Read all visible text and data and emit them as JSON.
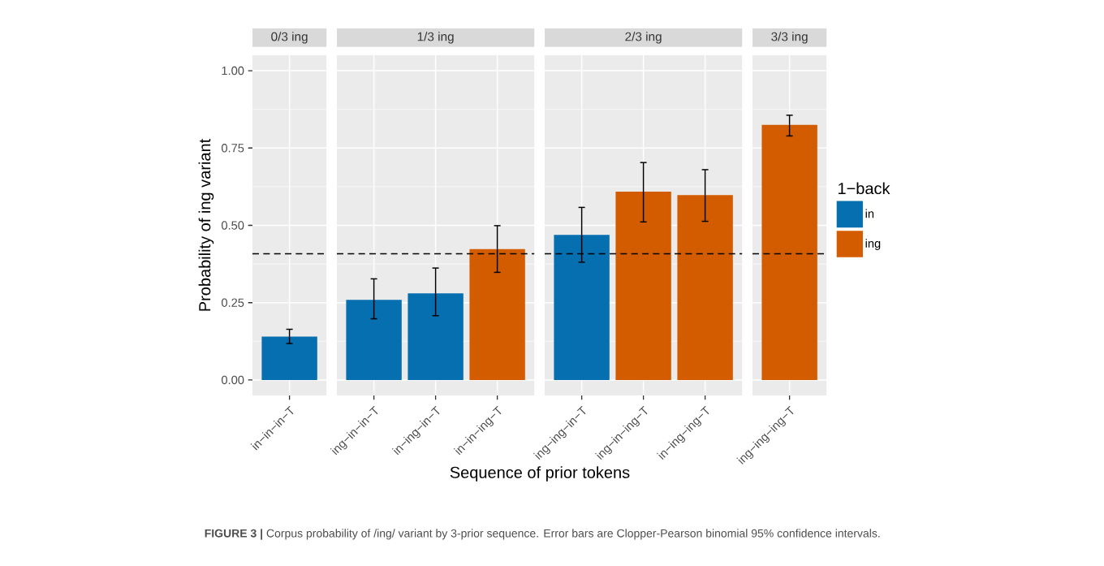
{
  "chart_data": [
    {
      "type": "bar",
      "title": "0/3 ing",
      "ylabel": "Probability of ing variant",
      "categories": [
        "in−in−in−T"
      ],
      "series": [
        {
          "color": "#066fb0",
          "values": [
            0.14
          ],
          "errors": [
            [
              0.118,
              0.164
            ]
          ]
        }
      ],
      "ylim": [
        -0.05,
        1.05
      ],
      "yticks": [
        {
          "value": 0,
          "label": "0.00"
        },
        {
          "value": 0.25,
          "label": "0.25"
        },
        {
          "value": 0.5,
          "label": "0.50"
        },
        {
          "value": 0.75,
          "label": "0.75"
        },
        {
          "value": 1,
          "label": "1.00"
        }
      ],
      "grid": true,
      "ref_lines": [
        {
          "axis": "y",
          "value": 0.408,
          "color": "#000000",
          "line_style": "dashed"
        }
      ],
      "annotations": [
        "**FIGURE 3 |** Corpus probability of /ing/ variant by 3-prior sequence. Error bars are Clopper-Pearson binomial 95% confidence intervals."
      ]
    },
    {
      "type": "bar",
      "title": "1/3 ing",
      "xlabel": "Sequence of prior tokens",
      "categories": [
        "ing−in−in−T",
        "in−ing−in−T",
        "in−in−ing−T"
      ],
      "series": [
        {
          "color": "#066fb0",
          "values": [
            0.259,
            0.28,
            null
          ],
          "errors": [
            [
              0.198,
              0.327
            ],
            [
              0.208,
              0.362
            ],
            null
          ]
        },
        {
          "color": "#d35c00",
          "values": [
            null,
            null,
            0.423
          ],
          "errors": [
            null,
            null,
            [
              0.348,
              0.499
            ]
          ]
        }
      ],
      "ylim": [
        -0.05,
        1.05
      ],
      "yticks": [
        {
          "value": 0,
          "label": null
        },
        {
          "value": 0.25,
          "label": null
        },
        {
          "value": 0.5,
          "label": null
        },
        {
          "value": 0.75,
          "label": null
        },
        {
          "value": 1,
          "label": null
        }
      ],
      "grid": true,
      "tick_labels": "x",
      "ref_lines": [
        {
          "axis": "y",
          "value": 0.408,
          "color": "#000000",
          "line_style": "dashed"
        }
      ]
    },
    {
      "type": "bar",
      "title": "2/3 ing",
      "categories": [
        "ing−ing−in−T",
        "ing−in−ing−T",
        "in−ing−ing−T"
      ],
      "series": [
        {
          "color": "#066fb0",
          "values": [
            0.469,
            null,
            null
          ],
          "errors": [
            [
              0.381,
              0.558
            ],
            null,
            null
          ]
        },
        {
          "color": "#d35c00",
          "values": [
            null,
            0.609,
            0.598
          ],
          "errors": [
            null,
            [
              0.511,
              0.703
            ],
            [
              0.513,
              0.68
            ]
          ]
        }
      ],
      "ylim": [
        -0.05,
        1.05
      ],
      "yticks": [
        {
          "value": 0,
          "label": null
        },
        {
          "value": 0.25,
          "label": null
        },
        {
          "value": 0.5,
          "label": null
        },
        {
          "value": 0.75,
          "label": null
        },
        {
          "value": 1,
          "label": null
        }
      ],
      "grid": true,
      "tick_labels": "x",
      "ref_lines": [
        {
          "axis": "y",
          "value": 0.408,
          "color": "#000000",
          "line_style": "dashed"
        }
      ]
    },
    {
      "type": "bar",
      "title": "3/3 ing",
      "categories": [
        "ing−ing−ing−T"
      ],
      "legend_title": "1−back",
      "legend": "right",
      "series": [
        {
          "name": "in",
          "color": "#066fb0",
          "values": [
            null
          ],
          "errors": [
            null
          ]
        },
        {
          "name": "ing",
          "color": "#d35c00",
          "values": [
            0.825
          ],
          "errors": [
            [
              0.789,
              0.856
            ]
          ]
        }
      ],
      "ylim": [
        -0.05,
        1.05
      ],
      "yticks": [
        {
          "value": 0,
          "label": null
        },
        {
          "value": 0.25,
          "label": null
        },
        {
          "value": 0.5,
          "label": null
        },
        {
          "value": 0.75,
          "label": null
        },
        {
          "value": 1,
          "label": null
        }
      ],
      "grid": true,
      "tick_labels": "x",
      "ref_lines": [
        {
          "axis": "y",
          "value": 0.408,
          "color": "#000000",
          "line_style": "dashed"
        }
      ]
    }
  ]
}
